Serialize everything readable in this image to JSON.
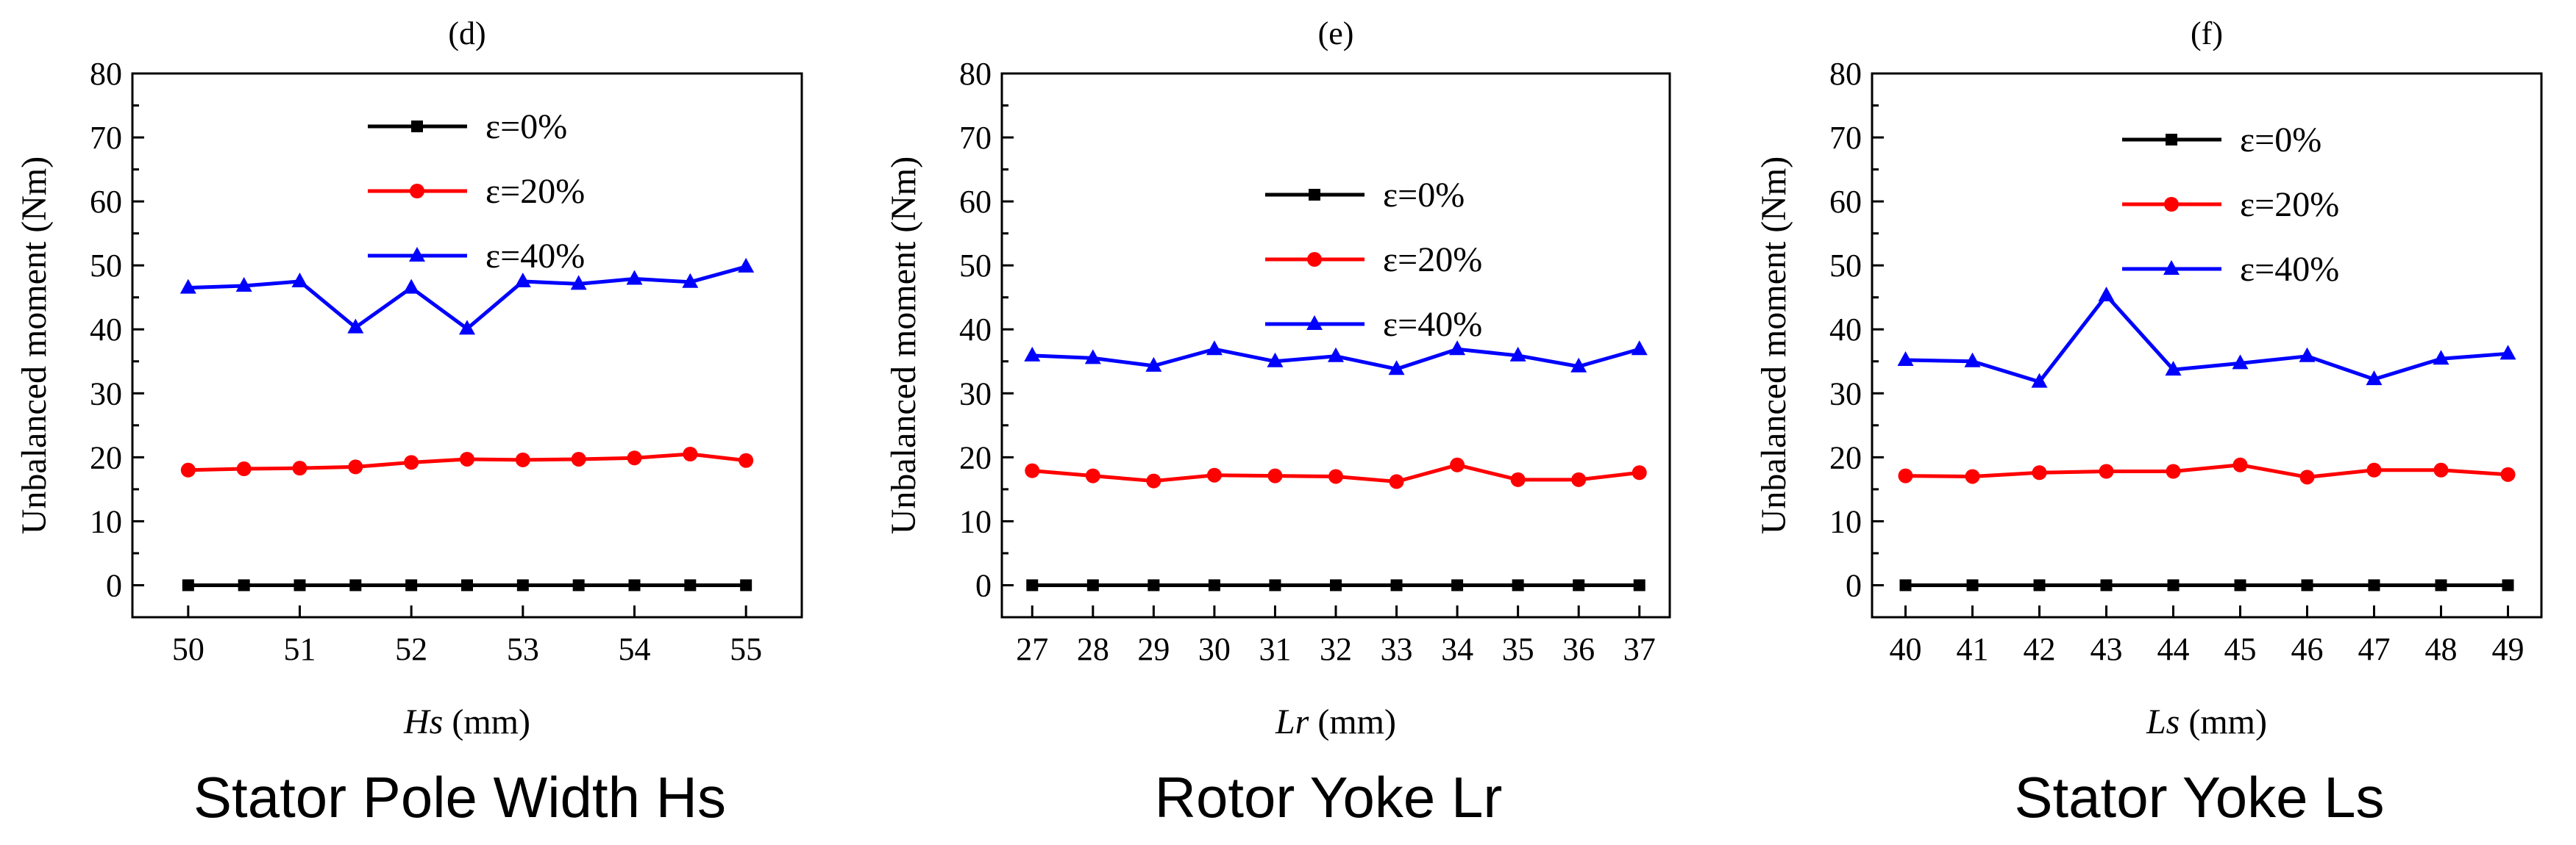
{
  "chart_data": [
    {
      "type": "line",
      "title": "(d)",
      "caption": "Stator Pole Width Hs",
      "xlabel_var": "Hs",
      "xlabel_unit": " (mm)",
      "ylabel": "Unbalanced moment (Nm)",
      "x": [
        50,
        50.5,
        51,
        51.5,
        52,
        52.5,
        53,
        53.5,
        54,
        54.5,
        55
      ],
      "x_ticks": [
        50,
        51,
        52,
        53,
        54,
        55
      ],
      "x_tick_labels": [
        "50",
        "51",
        "52",
        "53",
        "54",
        "55"
      ],
      "xlim": [
        49.5,
        55.5
      ],
      "ylim": [
        -5,
        80
      ],
      "y_ticks": [
        0,
        10,
        20,
        30,
        40,
        50,
        60,
        70,
        80
      ],
      "y_tick_labels": [
        "0",
        "10",
        "20",
        "30",
        "40",
        "50",
        "60",
        "70",
        "80"
      ],
      "legend_position": "top-center",
      "series": [
        {
          "name": "ε=0%",
          "color": "#000000",
          "marker": "square",
          "values": [
            0,
            0,
            0,
            0,
            0,
            0,
            0,
            0,
            0,
            0,
            0
          ]
        },
        {
          "name": "ε=20%",
          "color": "#ff0000",
          "marker": "circle",
          "values": [
            18,
            18.2,
            18.3,
            18.5,
            19.2,
            19.7,
            19.6,
            19.7,
            19.9,
            20.5,
            19.5
          ]
        },
        {
          "name": "ε=40%",
          "color": "#0000ff",
          "marker": "triangle",
          "values": [
            46.5,
            46.8,
            47.5,
            40.3,
            46.5,
            40.1,
            47.5,
            47.1,
            47.9,
            47.4,
            49.8
          ]
        }
      ]
    },
    {
      "type": "line",
      "title": "(e)",
      "caption": "Rotor Yoke Lr",
      "xlabel_var": "Lr",
      "xlabel_unit": " (mm)",
      "ylabel": "Unbalanced moment (Nm)",
      "x": [
        27,
        28,
        29,
        30,
        31,
        32,
        33,
        34,
        35,
        36,
        37
      ],
      "x_ticks": [
        27,
        28,
        29,
        30,
        31,
        32,
        33,
        34,
        35,
        36,
        37
      ],
      "x_tick_labels": [
        "27",
        "28",
        "29",
        "30",
        "31",
        "32",
        "33",
        "34",
        "35",
        "36",
        "37"
      ],
      "xlim": [
        26.5,
        37.5
      ],
      "ylim": [
        -5,
        80
      ],
      "y_ticks": [
        0,
        10,
        20,
        30,
        40,
        50,
        60,
        70,
        80
      ],
      "y_tick_labels": [
        "0",
        "10",
        "20",
        "30",
        "40",
        "50",
        "60",
        "70",
        "80"
      ],
      "legend_position": "center",
      "series": [
        {
          "name": "ε=0%",
          "color": "#000000",
          "marker": "square",
          "values": [
            0,
            0,
            0,
            0,
            0,
            0,
            0,
            0,
            0,
            0,
            0
          ]
        },
        {
          "name": "ε=20%",
          "color": "#ff0000",
          "marker": "circle",
          "values": [
            17.9,
            17.1,
            16.3,
            17.2,
            17.1,
            17,
            16.2,
            18.8,
            16.5,
            16.5,
            17.6
          ]
        },
        {
          "name": "ε=40%",
          "color": "#0000ff",
          "marker": "triangle",
          "values": [
            35.9,
            35.5,
            34.3,
            36.9,
            35,
            35.8,
            33.8,
            36.9,
            35.9,
            34.2,
            36.9
          ]
        }
      ]
    },
    {
      "type": "line",
      "title": "(f)",
      "caption": "Stator Yoke Ls",
      "xlabel_var": "Ls",
      "xlabel_unit": " (mm)",
      "ylabel": "Unbalanced moment (Nm)",
      "x": [
        40,
        41,
        42,
        43,
        44,
        45,
        46,
        47,
        48,
        49
      ],
      "x_ticks": [
        40,
        41,
        42,
        43,
        44,
        45,
        46,
        47,
        48,
        49
      ],
      "x_tick_labels": [
        "40",
        "41",
        "42",
        "43",
        "44",
        "45",
        "46",
        "47",
        "48",
        "49"
      ],
      "xlim": [
        39.5,
        49.5
      ],
      "ylim": [
        -5,
        80
      ],
      "y_ticks": [
        0,
        10,
        20,
        30,
        40,
        50,
        60,
        70,
        80
      ],
      "y_tick_labels": [
        "0",
        "10",
        "20",
        "30",
        "40",
        "50",
        "60",
        "70",
        "80"
      ],
      "legend_position": "top-center",
      "series": [
        {
          "name": "ε=0%",
          "color": "#000000",
          "marker": "square",
          "values": [
            0,
            0,
            0,
            0,
            0,
            0,
            0,
            0,
            0,
            0
          ]
        },
        {
          "name": "ε=20%",
          "color": "#ff0000",
          "marker": "circle",
          "values": [
            17.1,
            17,
            17.6,
            17.8,
            17.8,
            18.8,
            16.9,
            18,
            18,
            17.3
          ]
        },
        {
          "name": "ε=40%",
          "color": "#0000ff",
          "marker": "triangle",
          "values": [
            35.2,
            35,
            31.8,
            45.3,
            33.7,
            34.7,
            35.8,
            32.2,
            35.4,
            36.2
          ]
        }
      ]
    }
  ]
}
